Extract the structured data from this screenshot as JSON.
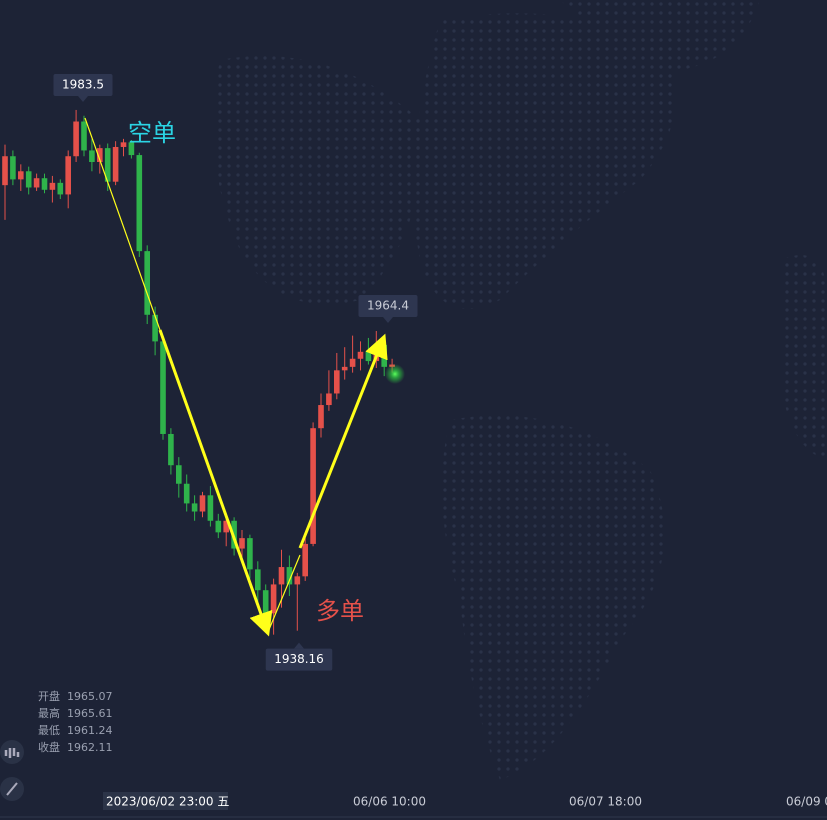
{
  "chart_data": {
    "type": "candlestick",
    "open": [
      1977.0,
      1979.5,
      1977.5,
      1978.2,
      1976.8,
      1977.6,
      1976.6,
      1977.2,
      1976.2,
      1979.5,
      1982.5,
      1980.0,
      1979.0,
      1980.2,
      1977.3,
      1980.3,
      1980.7,
      1979.6,
      1971.3,
      1965.8,
      1963.5,
      1955.5,
      1952.8,
      1951.2,
      1949.5,
      1948.8,
      1950.2,
      1948.0,
      1947.0,
      1948.0,
      1945.6,
      1946.5,
      1943.8,
      1942.0,
      1940.0,
      1942.5,
      1944.0,
      1942.5,
      1943.2,
      1946.0,
      1956.0,
      1958.0,
      1959.0,
      1961.0,
      1961.3,
      1962.0,
      1962.6,
      1961.8,
      1963.2,
      1961.3
    ],
    "high": [
      1980.5,
      1980.0,
      1978.8,
      1978.6,
      1978.0,
      1978.0,
      1977.8,
      1977.5,
      1980.0,
      1983.5,
      1983.0,
      1981.0,
      1980.5,
      1980.6,
      1980.8,
      1981.0,
      1980.9,
      1979.8,
      1971.8,
      1966.5,
      1964.0,
      1956.0,
      1953.5,
      1952.0,
      1950.2,
      1950.5,
      1951.0,
      1948.6,
      1948.5,
      1948.3,
      1947.2,
      1946.8,
      1944.5,
      1942.5,
      1943.0,
      1945.5,
      1945.0,
      1943.5,
      1946.5,
      1956.5,
      1959.0,
      1961.0,
      1962.5,
      1963.0,
      1964.0,
      1963.5,
      1963.8,
      1964.4,
      1963.6,
      1962.0
    ],
    "low": [
      1974.0,
      1977.0,
      1976.5,
      1976.2,
      1976.5,
      1976.3,
      1975.5,
      1975.8,
      1975.0,
      1979.0,
      1979.5,
      1978.2,
      1978.0,
      1976.5,
      1977.0,
      1979.5,
      1979.3,
      1970.8,
      1965.0,
      1962.3,
      1955.0,
      1952.0,
      1950.0,
      1948.8,
      1948.0,
      1948.3,
      1947.5,
      1946.5,
      1945.8,
      1945.0,
      1944.5,
      1943.0,
      1941.0,
      1939.5,
      1938.16,
      1940.5,
      1941.5,
      1938.5,
      1942.8,
      1945.8,
      1955.2,
      1957.5,
      1958.5,
      1960.2,
      1960.8,
      1961.0,
      1961.5,
      1961.2,
      1960.5,
      1960.8
    ],
    "close": [
      1979.5,
      1977.5,
      1978.2,
      1976.8,
      1977.6,
      1976.6,
      1977.2,
      1976.2,
      1979.5,
      1982.5,
      1980.0,
      1979.0,
      1980.2,
      1977.3,
      1980.3,
      1980.7,
      1979.6,
      1971.3,
      1965.8,
      1963.5,
      1955.5,
      1952.8,
      1951.2,
      1949.5,
      1948.8,
      1950.2,
      1948.0,
      1947.0,
      1948.0,
      1945.6,
      1946.5,
      1943.8,
      1942.0,
      1940.0,
      1942.5,
      1944.0,
      1942.5,
      1943.2,
      1946.0,
      1956.0,
      1958.0,
      1959.0,
      1961.0,
      1961.3,
      1962.0,
      1962.6,
      1961.8,
      1963.2,
      1961.3,
      1961.5
    ],
    "up_color": "#e5514a",
    "down_color": "#2fb34b",
    "ylim": [
      1925.6,
      1993.0
    ],
    "highest": 1983.5,
    "lowest": 1938.16,
    "rebound_high": 1964.4,
    "annotations": [
      "空单",
      "多单"
    ],
    "x_labels": [
      "2023/06/02 23:00 五",
      "06/06 10:00",
      "06/07 18:00",
      "06/09 0"
    ],
    "ohlc_readout": [
      {
        "label": "开盘",
        "value": 1965.07
      },
      {
        "label": "最高",
        "value": 1965.61
      },
      {
        "label": "最低",
        "value": 1961.24
      },
      {
        "label": "收盘",
        "value": 1962.11
      }
    ]
  }
}
